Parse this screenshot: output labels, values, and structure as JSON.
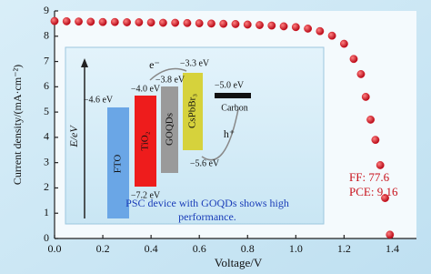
{
  "chart_data": {
    "type": "scatter",
    "x_label": "Voltage/V",
    "y_label": "Current density/(mA·cm⁻²)",
    "series": [
      {
        "color": "#d8101a",
        "x": [
          0,
          0.05,
          0.1,
          0.15,
          0.2,
          0.25,
          0.3,
          0.35,
          0.4,
          0.45,
          0.5,
          0.55,
          0.6,
          0.65,
          0.7,
          0.75,
          0.8,
          0.85,
          0.9,
          0.95,
          1.0,
          1.05,
          1.1,
          1.15,
          1.2,
          1.24,
          1.27,
          1.29,
          1.31,
          1.33,
          1.35,
          1.37,
          1.39
        ],
        "values": [
          8.6,
          8.59,
          8.58,
          8.57,
          8.56,
          8.56,
          8.55,
          8.55,
          8.54,
          8.53,
          8.53,
          8.52,
          8.51,
          8.5,
          8.49,
          8.48,
          8.46,
          8.44,
          8.42,
          8.39,
          8.36,
          8.3,
          8.2,
          8.02,
          7.7,
          7.1,
          6.5,
          5.6,
          4.7,
          3.9,
          2.9,
          1.6,
          0.15
        ]
      }
    ],
    "xlim": [
      0,
      1.5
    ],
    "ylim": [
      0,
      9
    ],
    "xticks": [
      {
        "value": 0,
        "label": "0.0"
      },
      0.2,
      0.4,
      0.6,
      0.8,
      {
        "value": 1,
        "label": "1.0"
      },
      1.2,
      1.4
    ],
    "yticks": [
      0,
      1,
      2,
      3,
      4,
      5,
      6,
      7,
      8,
      9
    ],
    "annotations": [
      "FF: 77.6",
      "PCE: 9.16"
    ],
    "inset": {
      "axis_label": "E/eV",
      "levels": [
        "−4.6 eV",
        "−4.0 eV",
        "−3.8 eV",
        "−3.3 eV",
        "−5.0 eV",
        "−7.2 eV",
        "−5.6 eV"
      ],
      "materials": [
        "FTO",
        "TiO₂",
        "GOQDs",
        "CsPbBr₃",
        "Carbon"
      ],
      "carriers": [
        "e⁻",
        "h⁺"
      ],
      "caption": [
        "PSC device with GOQDs shows high",
        "performance."
      ]
    }
  }
}
